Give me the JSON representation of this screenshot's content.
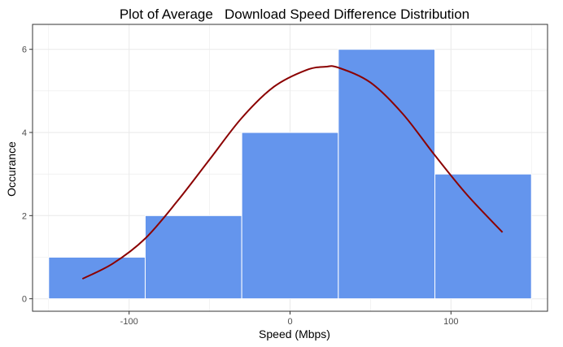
{
  "chart_data": {
    "type": "bar",
    "title": "Plot of Average   Download Speed Difference Distribution",
    "xlabel": "Speed (Mbps)",
    "ylabel": "Occurance",
    "xlim": [
      -160,
      160
    ],
    "ylim": [
      -0.3,
      6.6
    ],
    "x_ticks": [
      -100,
      0,
      100
    ],
    "x_tick_labels": [
      "-100",
      "0",
      "100"
    ],
    "y_ticks": [
      0,
      2,
      4,
      6
    ],
    "y_tick_labels": [
      "0",
      "2",
      "4",
      "6"
    ],
    "bins": [
      {
        "x0": -150,
        "x1": -90,
        "count": 1
      },
      {
        "x0": -90,
        "x1": -30,
        "count": 2
      },
      {
        "x0": -30,
        "x1": 30,
        "count": 4
      },
      {
        "x0": 30,
        "x1": 90,
        "count": 6
      },
      {
        "x0": 90,
        "x1": 150,
        "count": 3
      }
    ],
    "density_curve": {
      "x": [
        -129,
        -110,
        -90,
        -70,
        -50,
        -30,
        -10,
        10,
        22,
        30,
        50,
        70,
        90,
        110,
        132
      ],
      "y": [
        0.48,
        0.85,
        1.45,
        2.35,
        3.35,
        4.35,
        5.1,
        5.5,
        5.58,
        5.56,
        5.2,
        4.45,
        3.45,
        2.5,
        1.6
      ]
    },
    "grid": true,
    "legend": false,
    "colors": {
      "bar_fill": "#6495ED",
      "bar_stroke": "#ffffff",
      "curve": "#8B0000",
      "grid": "#ebebeb",
      "panel_border": "#333333"
    }
  }
}
